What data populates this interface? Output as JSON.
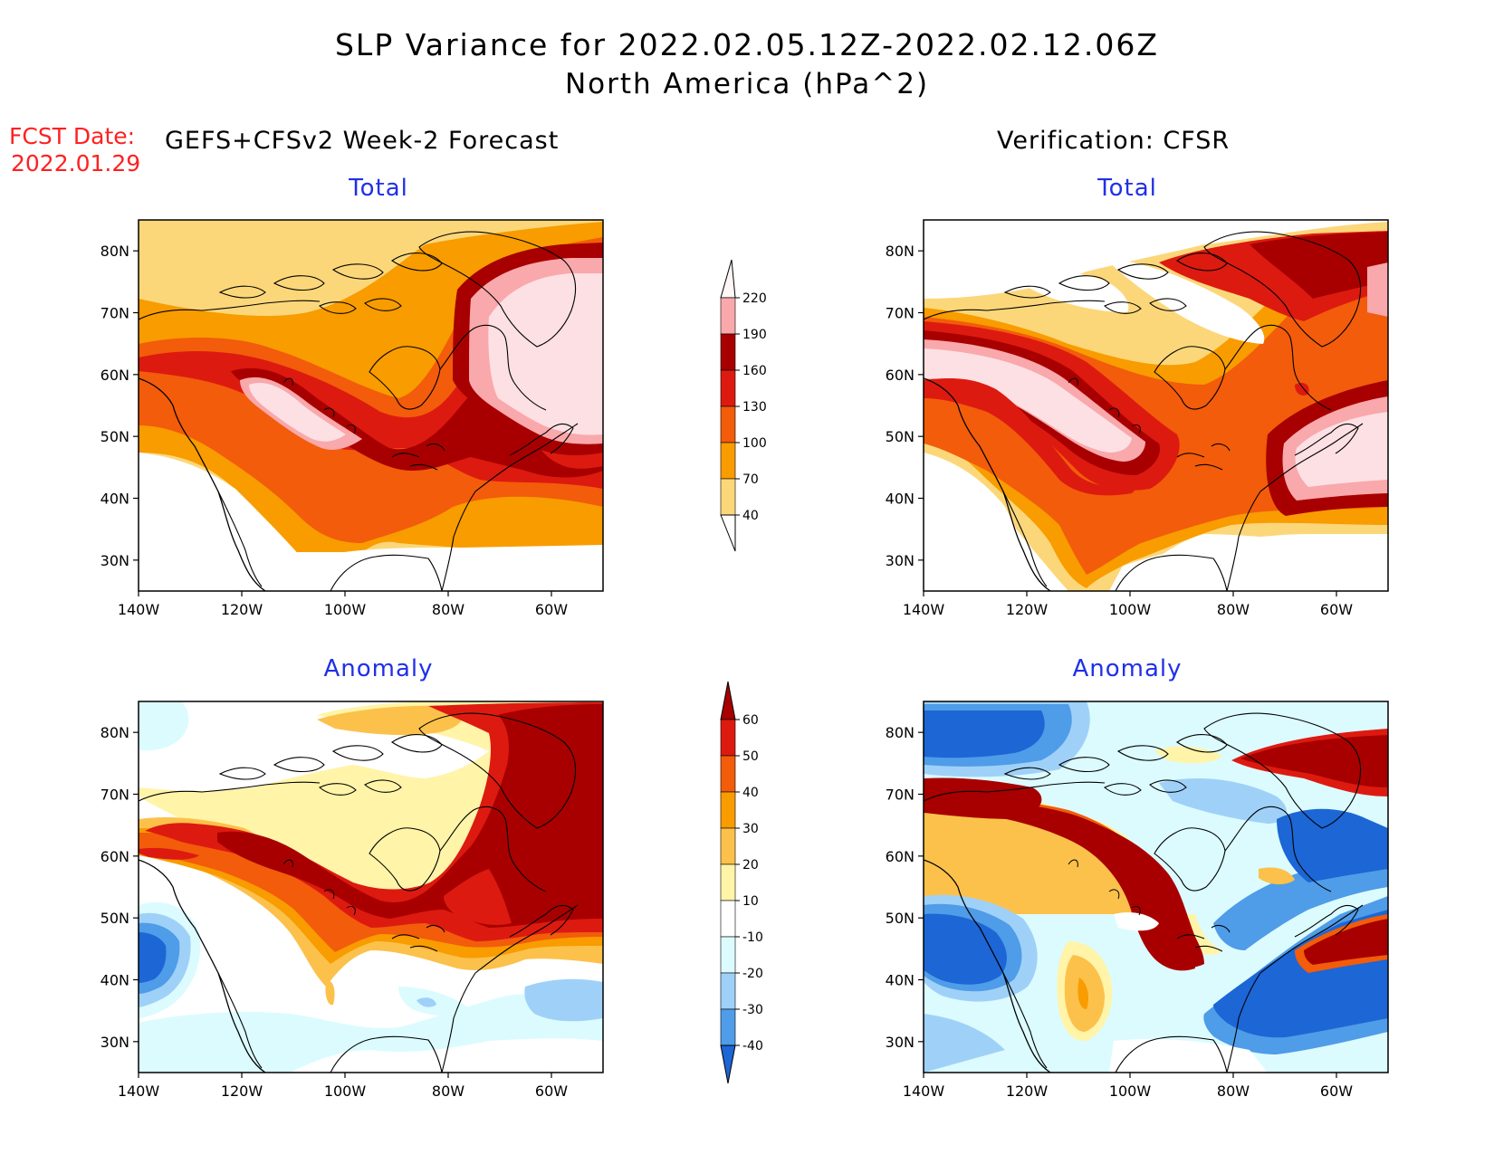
{
  "title": "SLP Variance for 2022.02.05.12Z-2022.02.12.06Z",
  "subtitle": "North America (hPa^2)",
  "fcst_label": "FCST Date:",
  "fcst_date": "2022.01.29",
  "left_header": "GEFS+CFSv2 Week-2 Forecast",
  "right_header": "Verification: CFSR",
  "panels": [
    {
      "title": "Total"
    },
    {
      "title": "Total"
    },
    {
      "title": "Anomaly"
    },
    {
      "title": "Anomaly"
    }
  ],
  "axes": {
    "lon_labels": [
      "140W",
      "120W",
      "100W",
      "80W",
      "60W"
    ],
    "lat_labels": [
      "80N",
      "70N",
      "60N",
      "50N",
      "40N",
      "30N"
    ]
  },
  "legend_total": {
    "labels": [
      "220",
      "190",
      "160",
      "130",
      "100",
      "70",
      "40"
    ],
    "colors": [
      "#f9a8ab",
      "#a80000",
      "#dd1a10",
      "#f25c0a",
      "#f89c00",
      "#fcd77a"
    ]
  },
  "legend_anomaly": {
    "labels": [
      "60",
      "50",
      "40",
      "30",
      "20",
      "10",
      "-10",
      "-20",
      "-30",
      "-40"
    ],
    "colors": [
      "#a80000",
      "#dd1a10",
      "#f25c0a",
      "#f89c00",
      "#fcc14b",
      "#fff4a8",
      "#ffffff",
      "#dcfbff",
      "#9fd1f8",
      "#4f9ce8",
      "#1c66d6"
    ]
  },
  "chart_data": [
    {
      "type": "heatmap",
      "title": "Total",
      "region": "North America",
      "lon_range": [
        -140,
        -50
      ],
      "lat_range": [
        25,
        85
      ],
      "levels": [
        40,
        70,
        100,
        130,
        160,
        190,
        220
      ]
    },
    {
      "type": "heatmap",
      "title": "Total",
      "region": "North America",
      "lon_range": [
        -140,
        -50
      ],
      "lat_range": [
        25,
        85
      ],
      "levels": [
        40,
        70,
        100,
        130,
        160,
        190,
        220
      ]
    },
    {
      "type": "heatmap",
      "title": "Anomaly",
      "region": "North America",
      "lon_range": [
        -140,
        -50
      ],
      "lat_range": [
        25,
        85
      ],
      "levels": [
        -40,
        -30,
        -20,
        -10,
        10,
        20,
        30,
        40,
        50,
        60
      ]
    },
    {
      "type": "heatmap",
      "title": "Anomaly",
      "region": "North America",
      "lon_range": [
        -140,
        -50
      ],
      "lat_range": [
        25,
        85
      ],
      "levels": [
        -40,
        -30,
        -20,
        -10,
        10,
        20,
        30,
        40,
        50,
        60
      ]
    }
  ]
}
